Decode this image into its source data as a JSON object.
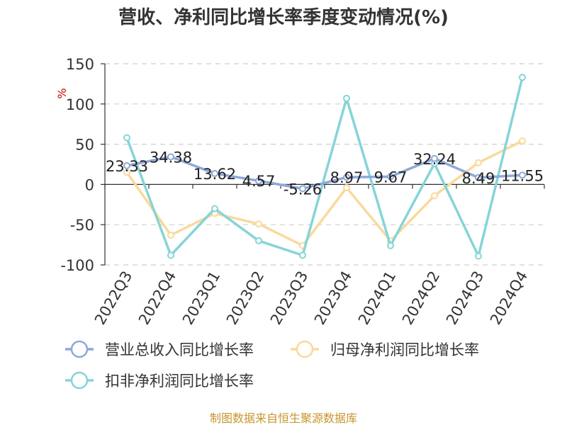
{
  "title": "营收、净利同比增长率季度变动情况(%)",
  "footer": "制图数据来自恒生聚源数据库",
  "chart_data": {
    "type": "line",
    "title": "营收、净利同比增长率季度变动情况(%)",
    "ylabel": "%",
    "xlabel": "",
    "ylim": [
      -100,
      150
    ],
    "yticks": [
      150,
      100,
      50,
      0,
      -50,
      -100
    ],
    "grid": true,
    "legend_position": "bottom",
    "categories": [
      "2022Q3",
      "2022Q4",
      "2023Q1",
      "2023Q2",
      "2023Q3",
      "2023Q4",
      "2024Q1",
      "2024Q2",
      "2024Q3",
      "2024Q4"
    ],
    "series": [
      {
        "name": "营业总收入同比增长率",
        "color": "#8fa8d8",
        "values": [
          23.33,
          34.38,
          13.62,
          4.57,
          -5.26,
          8.97,
          9.67,
          32.24,
          8.49,
          11.55
        ],
        "labels": [
          "23.33",
          "34.38",
          "13.62",
          "4.57",
          "-5.26",
          "8.97",
          "9.67",
          "32.24",
          "8.49",
          "11.55"
        ]
      },
      {
        "name": "归母净利润同比增长率",
        "color": "#fad99b",
        "values": [
          15,
          -63,
          -36,
          -49,
          -76,
          -4,
          -70,
          -14,
          27,
          54
        ]
      },
      {
        "name": "扣非净利润同比增长率",
        "color": "#86d4d7",
        "values": [
          58,
          -88,
          -30,
          -70,
          -88,
          107,
          -76,
          26,
          -89,
          133
        ]
      }
    ]
  }
}
